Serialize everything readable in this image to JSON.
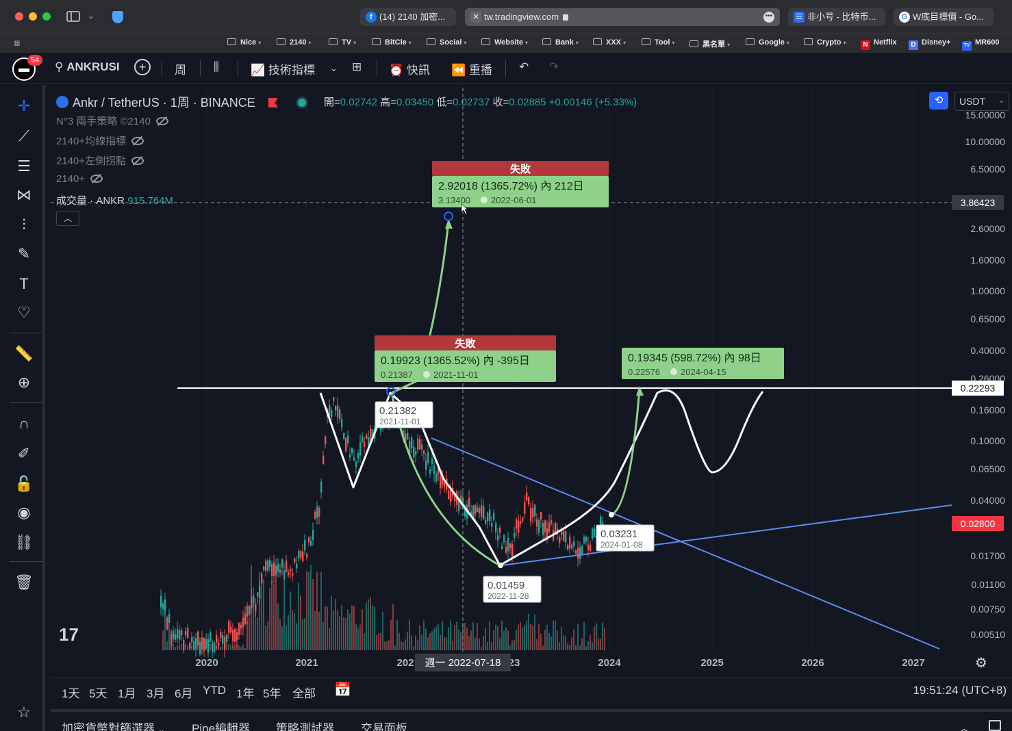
{
  "browser": {
    "tabs": [
      {
        "label": "(14) 2140 加密...",
        "icon": "facebook-icon",
        "icon_color": "#1877f2",
        "icon_glyph": "f"
      },
      {
        "label": "tw.tradingview.com",
        "icon": "tradingview-tab-icon",
        "icon_color": "#555",
        "icon_glyph": "✕"
      },
      {
        "label": "非小号 - 比特币...",
        "icon": "feixiaohao-icon",
        "icon_color": "#2a6cf6",
        "icon_glyph": "☰"
      },
      {
        "label": "W底目標價 - Go...",
        "icon": "google-icon",
        "icon_color": "#ffffff",
        "icon_glyph": "G"
      }
    ],
    "bookmarks": [
      {
        "label": "Nice",
        "type": "folder"
      },
      {
        "label": "2140",
        "type": "folder"
      },
      {
        "label": "TV",
        "type": "folder"
      },
      {
        "label": "BitCle",
        "type": "folder"
      },
      {
        "label": "Social",
        "type": "folder"
      },
      {
        "label": "Website",
        "type": "folder"
      },
      {
        "label": "Bank",
        "type": "folder"
      },
      {
        "label": "XXX",
        "type": "folder"
      },
      {
        "label": "Tool",
        "type": "folder"
      },
      {
        "label": "黑名單",
        "type": "folder"
      },
      {
        "label": "Google",
        "type": "folder"
      },
      {
        "label": "Crypto",
        "type": "folder"
      },
      {
        "label": "Netflix",
        "type": "link"
      },
      {
        "label": "Disney+",
        "type": "link"
      },
      {
        "label": "MR600",
        "type": "link"
      }
    ]
  },
  "header": {
    "badge": "54",
    "symbol_search": "ANKRUSI",
    "interval": "周",
    "indicators": "技術指標",
    "alerts": "快訊",
    "replay": "重播"
  },
  "chart": {
    "symbol_line": "Ankr / TetherUS · 1周 · BINANCE",
    "ohlc": {
      "open_label": "開=",
      "open": "0.02742",
      "high_label": "高=",
      "high": "0.03450",
      "low_label": "低=",
      "low": "0.02737",
      "close_label": "收=",
      "close": "0.02885",
      "change": "+0.00146 (+5.33%)"
    },
    "indicators": [
      {
        "label": "N°3 兩手策略 ©2140"
      },
      {
        "label": "2140+均線指標"
      },
      {
        "label": "2140+左側拐點"
      },
      {
        "label": "2140+"
      }
    ],
    "volume_label": "成交量 · ANKR",
    "volume_value": "915.764M",
    "currency": "USDT",
    "crosshair_date": "週一 2022-07-18",
    "time": "19:51:24 (UTC+8)"
  },
  "chart_data": {
    "type": "candlestick",
    "y_scale": "log",
    "y_ticks": [
      "15.00000",
      "10.00000",
      "6.50000",
      "3.86423",
      "2.60000",
      "1.60000",
      "1.00000",
      "0.65000",
      "0.40000",
      "0.26000",
      "0.22293",
      "0.16000",
      "0.10000",
      "0.06500",
      "0.04000",
      "0.02800",
      "0.01700",
      "0.01100",
      "0.00750",
      "0.00510"
    ],
    "x_ticks": [
      "2020",
      "2021",
      "202",
      "23",
      "2024",
      "2025",
      "2026",
      "2027"
    ],
    "price_tags": [
      {
        "value": "3.86423",
        "style": "crosshair"
      },
      {
        "value": "0.22293",
        "style": "white"
      },
      {
        "value": "0.02800",
        "style": "red"
      }
    ],
    "annotations": [
      {
        "title": "失敗",
        "main": "2.92018 (1365.72%) 內 212日",
        "sub_price": "3.13400",
        "sub_date": "2022-06-01"
      },
      {
        "title": "失敗",
        "main": "0.19923 (1365.52%) 內 -395日",
        "sub_price": "0.21387",
        "sub_date": "2021-11-01"
      },
      {
        "title": "",
        "main": "0.19345 (598.72%) 內 98日",
        "sub_price": "0.22576",
        "sub_date": "2024-04-15"
      }
    ],
    "point_labels": [
      {
        "price": "0.21382",
        "date": "2021-11-01"
      },
      {
        "price": "0.01459",
        "date": "2022-11-28"
      },
      {
        "price": "0.03231",
        "date": "2024-01-08"
      }
    ]
  },
  "range_bar": {
    "items": [
      "1天",
      "5天",
      "1月",
      "3月",
      "6月",
      "YTD",
      "1年",
      "5年",
      "全部"
    ]
  },
  "panel": {
    "tabs": [
      "加密貨幣對篩選器",
      "Pine編輯器",
      "策略測試器",
      "交易面板"
    ]
  },
  "colors": {
    "up": "#26a69a",
    "down": "#ef5350",
    "trend_blue": "#5b8def",
    "projection_white": "#ffffff",
    "arc_green": "#8fd18a",
    "fail_red": "#b2383b"
  }
}
